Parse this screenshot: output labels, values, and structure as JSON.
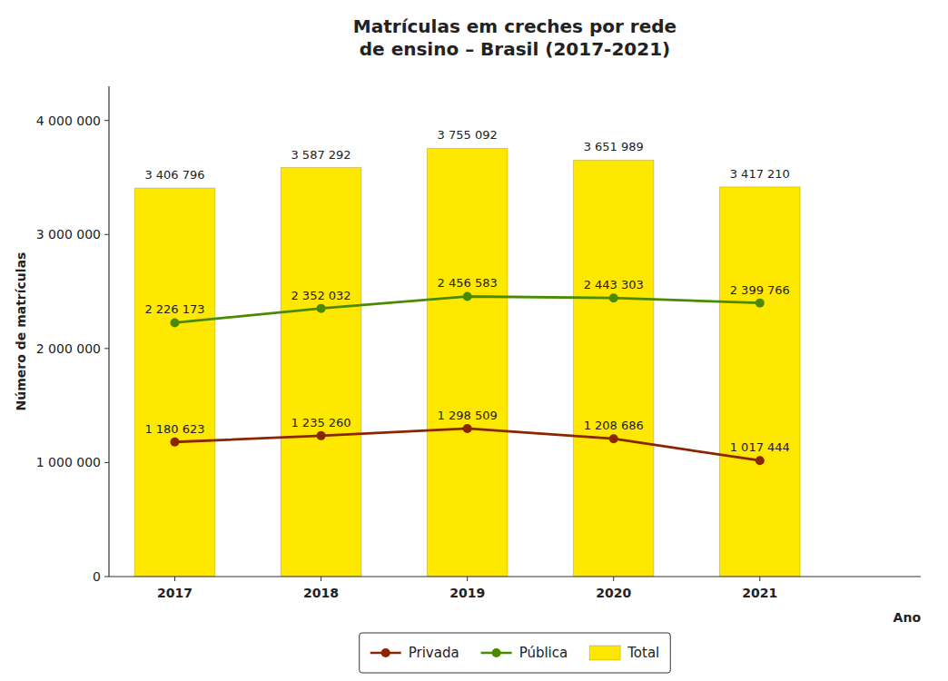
{
  "chart_data": {
    "type": "bar",
    "title": "Matrículas em creches por rede\nde ensino – Brasil (2017-2021)",
    "xlabel": "Ano",
    "ylabel": "Número de matrículas",
    "x": [
      2017,
      2018,
      2019,
      2020,
      2021
    ],
    "xlim": [
      2016.55,
      2022.1
    ],
    "xticks": [
      2017,
      2018,
      2019,
      2020,
      2021
    ],
    "ylim": [
      0,
      4300000
    ],
    "yticks": [
      0,
      {
        "value": 1000000,
        "label": "1 000 000"
      },
      {
        "value": 2000000,
        "label": "2 000 000"
      },
      {
        "value": 3000000,
        "label": "3 000 000"
      },
      {
        "value": 4000000,
        "label": "4 000 000"
      }
    ],
    "grid": false,
    "legend": "bottom",
    "data_labels": true,
    "series": [
      {
        "name": "Privada",
        "type": "line",
        "color": "#8B2500",
        "marker": "circle",
        "line_style": "solid",
        "values": [
          1180623,
          1235260,
          1298509,
          1208686,
          1017444
        ],
        "value_labels": [
          "1 180 623",
          "1 235 260",
          "1 298 509",
          "1 208 686",
          "1 017 444"
        ]
      },
      {
        "name": "Pública",
        "type": "line",
        "color": "#4A8A00",
        "marker": "circle",
        "line_style": "solid",
        "values": [
          2226173,
          2352032,
          2456583,
          2443303,
          2399766
        ],
        "value_labels": [
          "2 226 173",
          "2 352 032",
          "2 456 583",
          "2 443 303",
          "2 399 766"
        ]
      },
      {
        "name": "Total",
        "type": "bar",
        "color": "#FFE800",
        "values": [
          3406796,
          3587292,
          3755092,
          3651989,
          3417210
        ],
        "value_labels": [
          "3 406 796",
          "3 587 292",
          "3 755 092",
          "3 651 989",
          "3 417 210"
        ]
      }
    ]
  }
}
